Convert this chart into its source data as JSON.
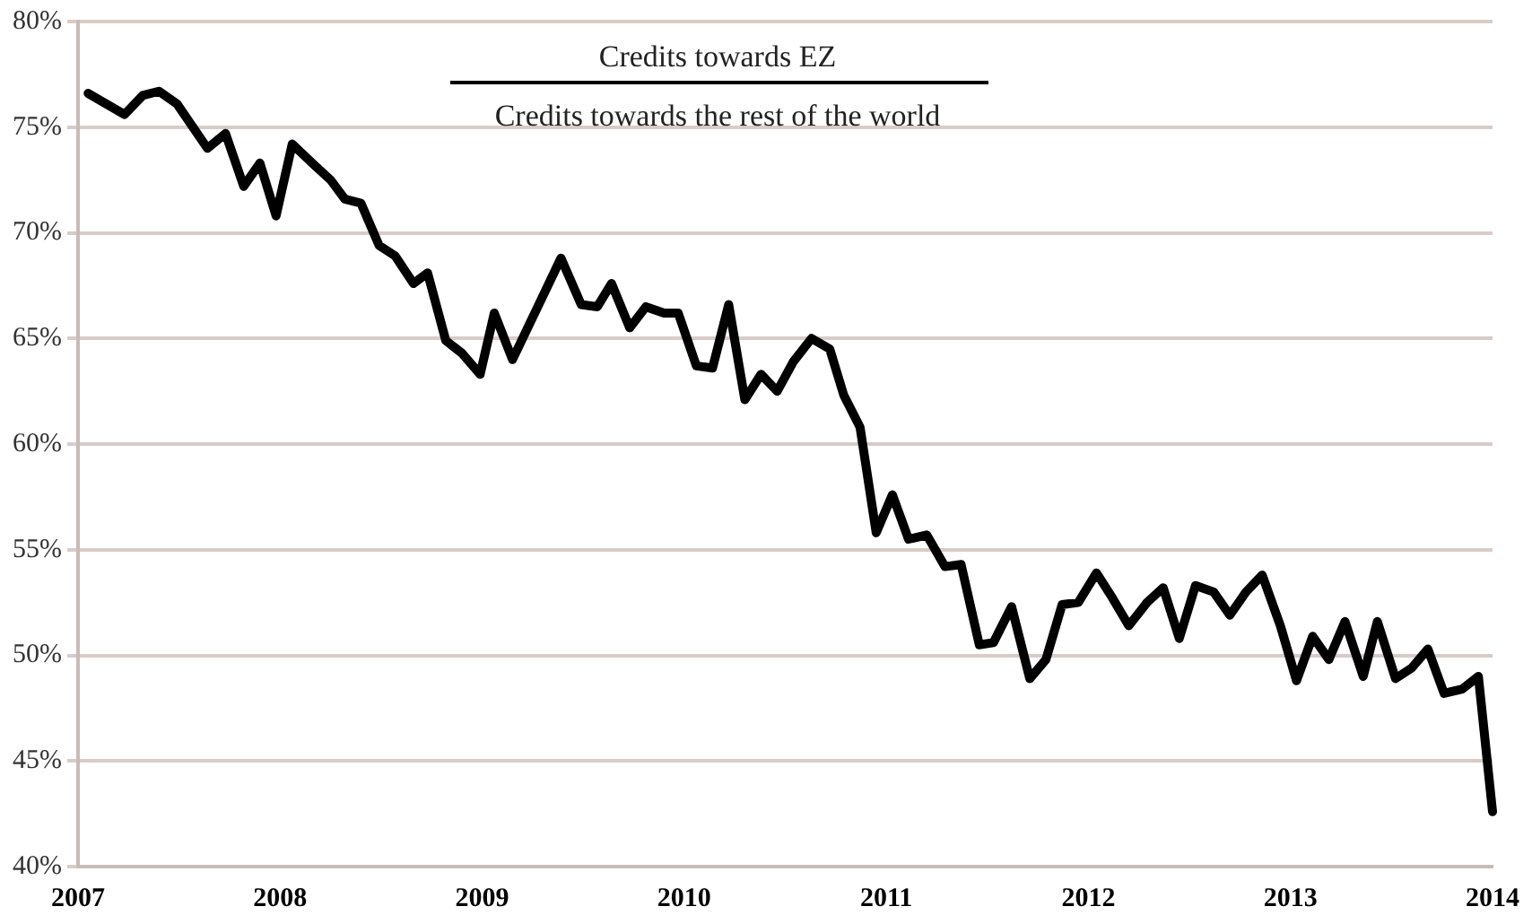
{
  "chart_data": {
    "type": "line",
    "title": "Credits towards EZ",
    "subtitle": "Credits towards the rest of the world",
    "x": [
      2007.05,
      2007.23,
      2007.32,
      2007.4,
      2007.49,
      2007.64,
      2007.73,
      2007.82,
      2007.9,
      2007.98,
      2008.06,
      2008.17,
      2008.25,
      2008.32,
      2008.4,
      2008.49,
      2008.57,
      2008.66,
      2008.73,
      2008.82,
      2008.9,
      2008.99,
      2009.06,
      2009.15,
      2009.28,
      2009.39,
      2009.49,
      2009.57,
      2009.64,
      2009.73,
      2009.81,
      2009.9,
      2009.97,
      2010.06,
      2010.14,
      2010.22,
      2010.3,
      2010.38,
      2010.46,
      2010.54,
      2010.63,
      2010.72,
      2010.79,
      2010.87,
      2010.95,
      2011.03,
      2011.11,
      2011.2,
      2011.29,
      2011.37,
      2011.46,
      2011.53,
      2011.62,
      2011.71,
      2011.79,
      2011.87,
      2011.95,
      2012.04,
      2012.12,
      2012.2,
      2012.29,
      2012.37,
      2012.45,
      2012.53,
      2012.62,
      2012.7,
      2012.78,
      2012.86,
      2012.95,
      2013.03,
      2013.11,
      2013.19,
      2013.27,
      2013.36,
      2013.43,
      2013.52,
      2013.6,
      2013.68,
      2013.76,
      2013.85,
      2013.93,
      2014.0
    ],
    "series": [
      {
        "color": "#000000",
        "values": [
          76.6,
          75.6,
          76.5,
          76.7,
          76.1,
          74.0,
          74.7,
          72.2,
          73.3,
          70.8,
          74.2,
          73.2,
          72.5,
          71.6,
          71.4,
          69.4,
          68.9,
          67.6,
          68.1,
          64.9,
          64.3,
          63.3,
          66.2,
          64.0,
          66.6,
          68.8,
          66.6,
          66.5,
          67.6,
          65.5,
          66.5,
          66.2,
          66.2,
          63.7,
          63.6,
          66.6,
          62.1,
          63.3,
          62.5,
          63.9,
          65.0,
          64.5,
          62.3,
          60.8,
          55.8,
          57.6,
          55.5,
          55.7,
          54.2,
          54.3,
          50.5,
          50.6,
          52.3,
          48.9,
          49.8,
          52.4,
          52.5,
          53.9,
          52.7,
          51.4,
          52.5,
          53.2,
          50.8,
          53.3,
          53.0,
          51.9,
          53.0,
          53.8,
          51.4,
          48.8,
          50.9,
          49.8,
          51.6,
          49.0,
          51.6,
          48.9,
          49.4,
          50.3,
          48.2,
          48.4,
          49.0,
          42.6
        ]
      }
    ],
    "xlim": [
      2007,
      2014
    ],
    "xticks": [
      2007,
      2008,
      2009,
      2010,
      2011,
      2012,
      2013,
      2014
    ],
    "ylim": [
      40,
      80
    ],
    "yticks": [
      {
        "value": 40,
        "label": "40%"
      },
      {
        "value": 45,
        "label": "45%"
      },
      {
        "value": 50,
        "label": "50%"
      },
      {
        "value": 55,
        "label": "55%"
      },
      {
        "value": 60,
        "label": "60%"
      },
      {
        "value": 65,
        "label": "65%"
      },
      {
        "value": 70,
        "label": "70%"
      },
      {
        "value": 75,
        "label": "75%"
      },
      {
        "value": 80,
        "label": "80%"
      }
    ],
    "grid": "y",
    "legend": false,
    "marker": "none",
    "line_style": "solid"
  }
}
